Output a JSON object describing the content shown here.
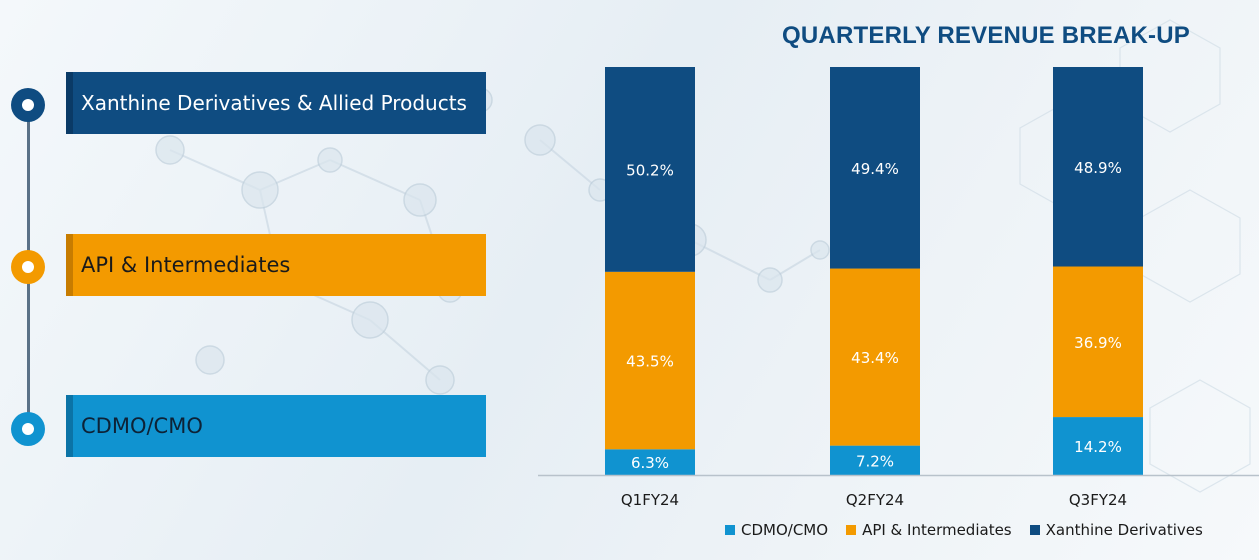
{
  "left_panel": {
    "items": [
      {
        "label": "Xanthine Derivatives & Allied Products",
        "color": "#0f4c81"
      },
      {
        "label": "API & Intermediates",
        "color": "#f39a00"
      },
      {
        "label": "CDMO/CMO",
        "color": "#1093d0"
      }
    ]
  },
  "chart_data": {
    "type": "bar",
    "stacked": true,
    "title": "QUARTERLY REVENUE BREAK-UP",
    "categories": [
      "Q1FY24",
      "Q2FY24",
      "Q3FY24"
    ],
    "series": [
      {
        "name": "CDMO/CMO",
        "values": [
          6.3,
          7.2,
          14.2
        ],
        "labels": [
          "6.3%",
          "7.2%",
          "14.2%"
        ],
        "color": "#1093d0"
      },
      {
        "name": "API & Intermediates",
        "values": [
          43.5,
          43.4,
          36.9
        ],
        "labels": [
          "43.5%",
          "43.4%",
          "36.9%"
        ],
        "color": "#f39a00"
      },
      {
        "name": "Xanthine Derivatives",
        "values": [
          50.2,
          49.4,
          48.9
        ],
        "labels": [
          "50.2%",
          "49.4%",
          "48.9%"
        ],
        "color": "#0f4c81"
      }
    ],
    "ylim": [
      0,
      100
    ],
    "grid": false,
    "legend_position": "bottom-right"
  }
}
